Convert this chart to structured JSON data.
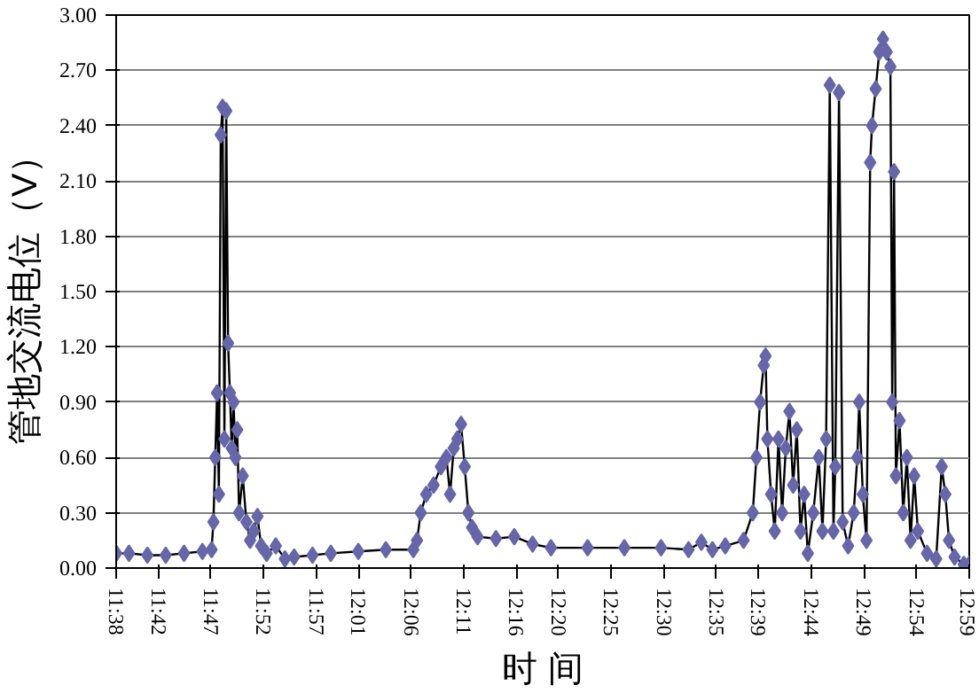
{
  "chart_data": {
    "type": "line",
    "xlabel": "时 间",
    "ylabel": "管地交流电位（V）",
    "marker": "diamond",
    "grid": "y",
    "xlim": [
      11.6333,
      12.9833
    ],
    "ylim": [
      0,
      3
    ],
    "xticks": [
      {
        "value": 11.6333,
        "label": "11:38"
      },
      {
        "value": 11.7,
        "label": "11:42"
      },
      {
        "value": 11.7833,
        "label": "11:47"
      },
      {
        "value": 11.8667,
        "label": "11:52"
      },
      {
        "value": 11.95,
        "label": "11:57"
      },
      {
        "value": 12.0167,
        "label": "12:01"
      },
      {
        "value": 12.1,
        "label": "12:06"
      },
      {
        "value": 12.1833,
        "label": "12:11"
      },
      {
        "value": 12.2667,
        "label": "12:16"
      },
      {
        "value": 12.3333,
        "label": "12:20"
      },
      {
        "value": 12.4167,
        "label": "12:25"
      },
      {
        "value": 12.5,
        "label": "12:30"
      },
      {
        "value": 12.5833,
        "label": "12:35"
      },
      {
        "value": 12.65,
        "label": "12:39"
      },
      {
        "value": 12.7333,
        "label": "12:44"
      },
      {
        "value": 12.8167,
        "label": "12:49"
      },
      {
        "value": 12.9,
        "label": "12:54"
      },
      {
        "value": 12.9833,
        "label": "12:59"
      }
    ],
    "yticks": [
      {
        "value": 0,
        "label": "0.00"
      },
      {
        "value": 0.3,
        "label": "0.30"
      },
      {
        "value": 0.6,
        "label": "0.60"
      },
      {
        "value": 0.9,
        "label": "0.90"
      },
      {
        "value": 1.2,
        "label": "1.20"
      },
      {
        "value": 1.5,
        "label": "1.50"
      },
      {
        "value": 1.8,
        "label": "1.80"
      },
      {
        "value": 2.1,
        "label": "2.10"
      },
      {
        "value": 2.4,
        "label": "2.40"
      },
      {
        "value": 2.7,
        "label": "2.70"
      },
      {
        "value": 3,
        "label": "3.00"
      }
    ],
    "series": [
      {
        "color": "#6666a8",
        "x": [
          11.6333,
          11.6536,
          11.6827,
          11.7117,
          11.7407,
          11.7698,
          11.7843,
          11.7872,
          11.7901,
          11.793,
          11.7959,
          11.7988,
          11.8017,
          11.8046,
          11.8075,
          11.8104,
          11.8133,
          11.8162,
          11.8191,
          11.822,
          11.8249,
          11.8278,
          11.8336,
          11.8394,
          11.8452,
          11.851,
          11.8569,
          11.8627,
          11.8714,
          11.8859,
          11.9004,
          11.9149,
          11.944,
          11.973,
          12.0165,
          12.0601,
          12.1036,
          12.1094,
          12.1153,
          12.124,
          12.1356,
          12.1472,
          12.1559,
          12.1617,
          12.1675,
          12.1733,
          12.1791,
          12.1849,
          12.1907,
          12.1965,
          12.2052,
          12.2343,
          12.2633,
          12.2923,
          12.3214,
          12.3794,
          12.4375,
          12.4956,
          12.5391,
          12.5594,
          12.5769,
          12.5972,
          12.6262,
          12.6407,
          12.6465,
          12.6523,
          12.6581,
          12.661,
          12.6639,
          12.6697,
          12.6755,
          12.6814,
          12.6872,
          12.693,
          12.6988,
          12.7046,
          12.7104,
          12.7162,
          12.722,
          12.7278,
          12.7365,
          12.7452,
          12.751,
          12.7568,
          12.7626,
          12.7684,
          12.7713,
          12.7772,
          12.783,
          12.7917,
          12.8004,
          12.8062,
          12.8091,
          12.8149,
          12.8207,
          12.8265,
          12.8294,
          12.8352,
          12.841,
          12.8468,
          12.8526,
          12.8585,
          12.8614,
          12.8643,
          12.8672,
          12.873,
          12.8788,
          12.8846,
          12.8904,
          12.8962,
          12.902,
          12.9165,
          12.931,
          12.9397,
          12.9455,
          12.9513,
          12.9601,
          12.9746,
          12.9833
        ],
        "values": [
          0.08,
          0.08,
          0.07,
          0.07,
          0.08,
          0.09,
          0.1,
          0.25,
          0.6,
          0.95,
          0.4,
          2.35,
          2.5,
          0.7,
          2.48,
          1.22,
          0.95,
          0.65,
          0.9,
          0.6,
          0.75,
          0.3,
          0.5,
          0.25,
          0.15,
          0.2,
          0.28,
          0.12,
          0.08,
          0.12,
          0.05,
          0.06,
          0.07,
          0.08,
          0.09,
          0.1,
          0.1,
          0.15,
          0.3,
          0.4,
          0.45,
          0.55,
          0.6,
          0.4,
          0.65,
          0.7,
          0.78,
          0.55,
          0.3,
          0.22,
          0.17,
          0.16,
          0.17,
          0.13,
          0.11,
          0.11,
          0.11,
          0.11,
          0.1,
          0.14,
          0.1,
          0.12,
          0.15,
          0.3,
          0.6,
          0.9,
          1.1,
          1.15,
          0.7,
          0.4,
          0.2,
          0.7,
          0.3,
          0.65,
          0.85,
          0.45,
          0.75,
          0.2,
          0.4,
          0.08,
          0.3,
          0.6,
          0.2,
          0.7,
          2.62,
          0.2,
          0.55,
          2.58,
          0.25,
          0.12,
          0.3,
          0.6,
          0.9,
          0.4,
          0.15,
          2.2,
          2.4,
          2.6,
          2.8,
          2.87,
          2.8,
          2.72,
          0.9,
          2.15,
          0.5,
          0.8,
          0.3,
          0.6,
          0.15,
          0.5,
          0.2,
          0.08,
          0.05,
          0.55,
          0.4,
          0.15,
          0.06,
          0.02,
          0.02
        ]
      }
    ]
  }
}
